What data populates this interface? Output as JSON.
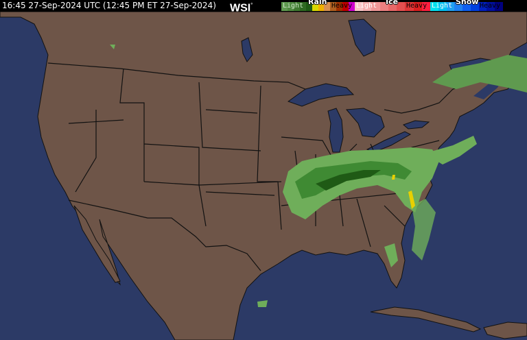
{
  "header": {
    "timestamp": "16:45 27-Sep-2024 UTC  (12:45 PM ET 27-Sep-2024)",
    "logo": "WSI",
    "logo_mark": "°"
  },
  "legend": {
    "rain": {
      "title": "Rain",
      "light": "Light",
      "heavy": "Heavy",
      "colors": [
        "#5f9a4f",
        "#4f8a40",
        "#3f7a30",
        "#2f6a22",
        "#1f5a15",
        "#d8d800",
        "#f0b000",
        "#d89050",
        "#b06020",
        "#a03000",
        "#c00000",
        "#d000d0"
      ]
    },
    "ice": {
      "title": "Ice",
      "light": "Light",
      "heavy": "Heavy",
      "colors": [
        "#f8c8c8",
        "#f4b0b0",
        "#f09898",
        "#ec8080",
        "#e86868",
        "#e45050",
        "#e03838",
        "#dc2020",
        "#ff2040"
      ]
    },
    "snow": {
      "title": "Snow",
      "light": "Light",
      "heavy": "Heavy",
      "colors": [
        "#00e0f0",
        "#00c0f0",
        "#20a0f0",
        "#2080f0",
        "#1060f0",
        "#0040e0",
        "#0020c0",
        "#0010a0",
        "#000080"
      ]
    }
  },
  "map_colors": {
    "land": "#6e5548",
    "water": "#2c3a66",
    "borders": "#111111",
    "precip_light": "#6fae5a",
    "precip_mid": "#3f8a33",
    "precip_heavy": "#1f5a15",
    "mixed": "#e8d000"
  }
}
